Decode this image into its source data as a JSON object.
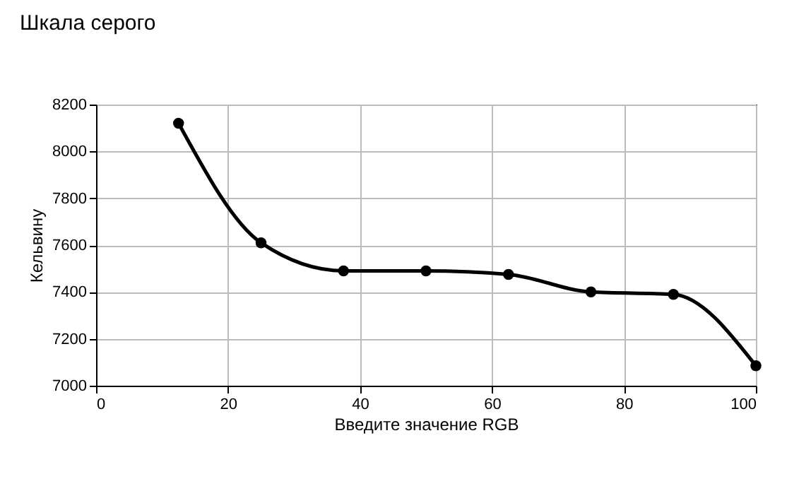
{
  "chart_data": {
    "type": "line",
    "title": "Шкала серого",
    "xlabel": "Введите значение RGB",
    "ylabel": "Кельвину",
    "x": [
      12.5,
      25,
      37.5,
      50,
      62.5,
      75,
      87.5,
      100
    ],
    "series": [
      {
        "color": "#000000",
        "values": [
          8120,
          7610,
          7490,
          7490,
          7475,
          7400,
          7390,
          7085
        ]
      }
    ],
    "xlim": [
      0,
      100
    ],
    "xticks": [
      0,
      20,
      40,
      60,
      80,
      100
    ],
    "ylim": [
      7000,
      8200
    ],
    "yticks": [
      7000,
      7200,
      7400,
      7600,
      7800,
      8000,
      8200
    ],
    "grid": true,
    "marker": "circle",
    "line_style": "solid"
  }
}
